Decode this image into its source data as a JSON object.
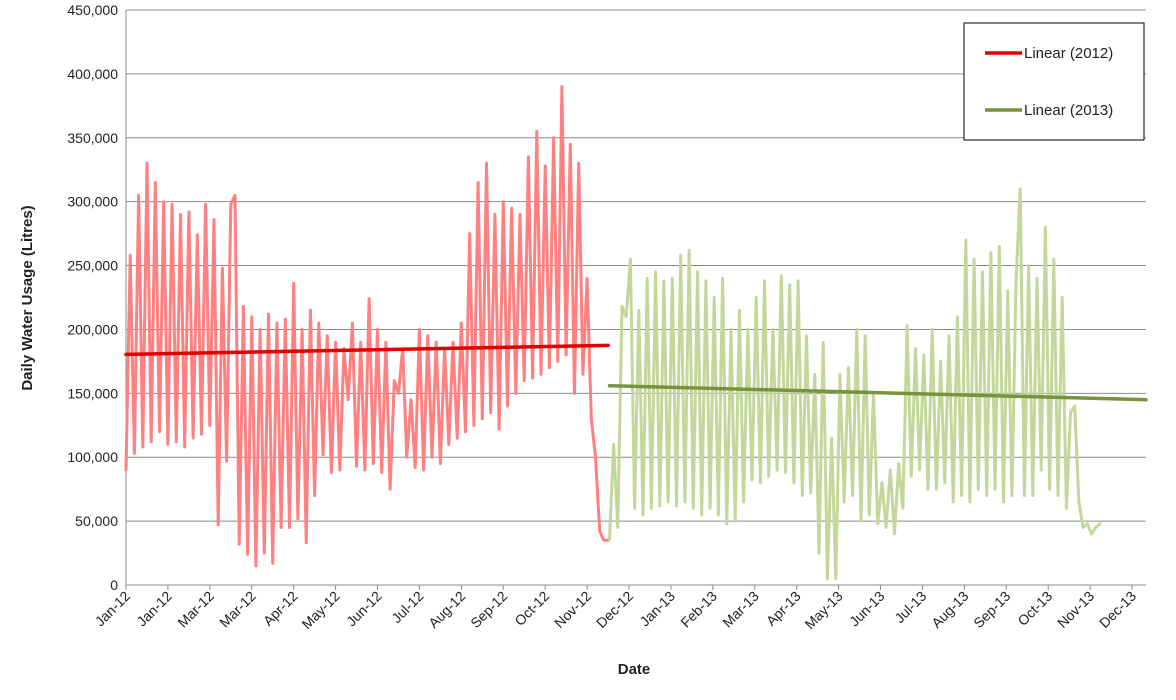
{
  "chart_data": {
    "type": "line",
    "title": "",
    "xlabel": "Date",
    "ylabel": "Daily Water Usage (Litres)",
    "ylim": [
      0,
      450000
    ],
    "yticks": [
      {
        "value": 0,
        "label": "0"
      },
      {
        "value": 50000,
        "label": "50,000"
      },
      {
        "value": 100000,
        "label": "100,000"
      },
      {
        "value": 150000,
        "label": "150,000"
      },
      {
        "value": 200000,
        "label": "200,000"
      },
      {
        "value": 250000,
        "label": "250,000"
      },
      {
        "value": 300000,
        "label": "300,000"
      },
      {
        "value": 350000,
        "label": "350,000"
      },
      {
        "value": 400000,
        "label": "400,000"
      },
      {
        "value": 450000,
        "label": "450,000"
      }
    ],
    "xlim": [
      "2012-01-01",
      "2013-12-31"
    ],
    "xticks": [
      {
        "date": "2012-01-01",
        "label": "Jan-12"
      },
      {
        "date": "2012-01-31",
        "label": "Jan-12"
      },
      {
        "date": "2012-03-01",
        "label": "Mar-12"
      },
      {
        "date": "2012-03-31",
        "label": "Mar-12"
      },
      {
        "date": "2012-04-30",
        "label": "Apr-12"
      },
      {
        "date": "2012-05-30",
        "label": "May-12"
      },
      {
        "date": "2012-06-29",
        "label": "Jun-12"
      },
      {
        "date": "2012-07-29",
        "label": "Jul-12"
      },
      {
        "date": "2012-08-28",
        "label": "Aug-12"
      },
      {
        "date": "2012-09-27",
        "label": "Sep-12"
      },
      {
        "date": "2012-10-27",
        "label": "Oct-12"
      },
      {
        "date": "2012-11-26",
        "label": "Nov-12"
      },
      {
        "date": "2012-12-26",
        "label": "Dec-12"
      },
      {
        "date": "2013-01-25",
        "label": "Jan-13"
      },
      {
        "date": "2013-02-24",
        "label": "Feb-13"
      },
      {
        "date": "2013-03-26",
        "label": "Mar-13"
      },
      {
        "date": "2013-04-25",
        "label": "Apr-13"
      },
      {
        "date": "2013-05-25",
        "label": "May-13"
      },
      {
        "date": "2013-06-24",
        "label": "Jun-13"
      },
      {
        "date": "2013-07-24",
        "label": "Jul-13"
      },
      {
        "date": "2013-08-23",
        "label": "Aug-13"
      },
      {
        "date": "2013-09-22",
        "label": "Sep-13"
      },
      {
        "date": "2013-10-22",
        "label": "Oct-13"
      },
      {
        "date": "2013-11-21",
        "label": "Nov-13"
      },
      {
        "date": "2013-12-21",
        "label": "Dec-13"
      }
    ],
    "grid": {
      "horizontal": true,
      "vertical": false
    },
    "legend_placement": "top-right",
    "series": [
      {
        "name": "",
        "color": "#ff8080",
        "style": "data",
        "points": [
          [
            "2012-01-01",
            90000
          ],
          [
            "2012-01-04",
            258000
          ],
          [
            "2012-01-07",
            103000
          ],
          [
            "2012-01-10",
            305000
          ],
          [
            "2012-01-13",
            108000
          ],
          [
            "2012-01-16",
            330000
          ],
          [
            "2012-01-19",
            112000
          ],
          [
            "2012-01-22",
            315000
          ],
          [
            "2012-01-25",
            120000
          ],
          [
            "2012-01-28",
            300000
          ],
          [
            "2012-01-31",
            110000
          ],
          [
            "2012-02-03",
            298000
          ],
          [
            "2012-02-06",
            112000
          ],
          [
            "2012-02-09",
            290000
          ],
          [
            "2012-02-12",
            108000
          ],
          [
            "2012-02-15",
            292000
          ],
          [
            "2012-02-18",
            115000
          ],
          [
            "2012-02-21",
            274000
          ],
          [
            "2012-02-24",
            118000
          ],
          [
            "2012-02-27",
            298000
          ],
          [
            "2012-03-01",
            125000
          ],
          [
            "2012-03-04",
            286000
          ],
          [
            "2012-03-07",
            47000
          ],
          [
            "2012-03-10",
            248000
          ],
          [
            "2012-03-13",
            97000
          ],
          [
            "2012-03-16",
            298000
          ],
          [
            "2012-03-19",
            305000
          ],
          [
            "2012-03-22",
            32000
          ],
          [
            "2012-03-25",
            218000
          ],
          [
            "2012-03-28",
            24000
          ],
          [
            "2012-03-31",
            210000
          ],
          [
            "2012-04-03",
            15000
          ],
          [
            "2012-04-06",
            200000
          ],
          [
            "2012-04-09",
            25000
          ],
          [
            "2012-04-12",
            212000
          ],
          [
            "2012-04-15",
            17000
          ],
          [
            "2012-04-18",
            205000
          ],
          [
            "2012-04-21",
            45000
          ],
          [
            "2012-04-24",
            208000
          ],
          [
            "2012-04-27",
            45000
          ],
          [
            "2012-04-30",
            236000
          ],
          [
            "2012-05-03",
            52000
          ],
          [
            "2012-05-06",
            200000
          ],
          [
            "2012-05-09",
            33000
          ],
          [
            "2012-05-12",
            215000
          ],
          [
            "2012-05-15",
            70000
          ],
          [
            "2012-05-18",
            205000
          ],
          [
            "2012-05-21",
            102000
          ],
          [
            "2012-05-24",
            195000
          ],
          [
            "2012-05-27",
            88000
          ],
          [
            "2012-05-30",
            190000
          ],
          [
            "2012-06-02",
            90000
          ],
          [
            "2012-06-05",
            185000
          ],
          [
            "2012-06-08",
            145000
          ],
          [
            "2012-06-11",
            205000
          ],
          [
            "2012-06-14",
            93000
          ],
          [
            "2012-06-17",
            190000
          ],
          [
            "2012-06-20",
            90000
          ],
          [
            "2012-06-23",
            224000
          ],
          [
            "2012-06-26",
            95000
          ],
          [
            "2012-06-29",
            200000
          ],
          [
            "2012-07-02",
            88000
          ],
          [
            "2012-07-05",
            190000
          ],
          [
            "2012-07-08",
            75000
          ],
          [
            "2012-07-11",
            160000
          ],
          [
            "2012-07-14",
            150000
          ],
          [
            "2012-07-17",
            185000
          ],
          [
            "2012-07-20",
            100000
          ],
          [
            "2012-07-23",
            145000
          ],
          [
            "2012-07-26",
            92000
          ],
          [
            "2012-07-29",
            200000
          ],
          [
            "2012-08-01",
            90000
          ],
          [
            "2012-08-04",
            195000
          ],
          [
            "2012-08-07",
            100000
          ],
          [
            "2012-08-10",
            190000
          ],
          [
            "2012-08-13",
            95000
          ],
          [
            "2012-08-16",
            185000
          ],
          [
            "2012-08-19",
            110000
          ],
          [
            "2012-08-22",
            190000
          ],
          [
            "2012-08-25",
            115000
          ],
          [
            "2012-08-28",
            205000
          ],
          [
            "2012-08-31",
            120000
          ],
          [
            "2012-09-03",
            275000
          ],
          [
            "2012-09-06",
            125000
          ],
          [
            "2012-09-09",
            315000
          ],
          [
            "2012-09-12",
            130000
          ],
          [
            "2012-09-15",
            330000
          ],
          [
            "2012-09-18",
            135000
          ],
          [
            "2012-09-21",
            290000
          ],
          [
            "2012-09-24",
            122000
          ],
          [
            "2012-09-27",
            300000
          ],
          [
            "2012-09-30",
            140000
          ],
          [
            "2012-10-03",
            295000
          ],
          [
            "2012-10-06",
            150000
          ],
          [
            "2012-10-09",
            290000
          ],
          [
            "2012-10-12",
            160000
          ],
          [
            "2012-10-15",
            335000
          ],
          [
            "2012-10-18",
            162000
          ],
          [
            "2012-10-21",
            355000
          ],
          [
            "2012-10-24",
            165000
          ],
          [
            "2012-10-27",
            328000
          ],
          [
            "2012-10-30",
            170000
          ],
          [
            "2012-11-02",
            350000
          ],
          [
            "2012-11-05",
            175000
          ],
          [
            "2012-11-08",
            390000
          ],
          [
            "2012-11-11",
            180000
          ],
          [
            "2012-11-14",
            345000
          ],
          [
            "2012-11-17",
            150000
          ],
          [
            "2012-11-20",
            330000
          ],
          [
            "2012-11-23",
            165000
          ],
          [
            "2012-11-26",
            240000
          ],
          [
            "2012-11-29",
            130000
          ],
          [
            "2012-12-02",
            100000
          ],
          [
            "2012-12-05",
            42000
          ],
          [
            "2012-12-08",
            35000
          ],
          [
            "2012-12-11",
            35000
          ]
        ]
      },
      {
        "name": "",
        "color": "#c4d79b",
        "style": "data",
        "points": [
          [
            "2012-12-12",
            36000
          ],
          [
            "2012-12-15",
            110000
          ],
          [
            "2012-12-18",
            45000
          ],
          [
            "2012-12-21",
            218000
          ],
          [
            "2012-12-24",
            210000
          ],
          [
            "2012-12-27",
            255000
          ],
          [
            "2012-12-30",
            60000
          ],
          [
            "2013-01-02",
            215000
          ],
          [
            "2013-01-05",
            55000
          ],
          [
            "2013-01-08",
            240000
          ],
          [
            "2013-01-11",
            60000
          ],
          [
            "2013-01-14",
            245000
          ],
          [
            "2013-01-17",
            62000
          ],
          [
            "2013-01-20",
            238000
          ],
          [
            "2013-01-23",
            65000
          ],
          [
            "2013-01-26",
            240000
          ],
          [
            "2013-01-29",
            62000
          ],
          [
            "2013-02-01",
            258000
          ],
          [
            "2013-02-04",
            65000
          ],
          [
            "2013-02-07",
            262000
          ],
          [
            "2013-02-10",
            60000
          ],
          [
            "2013-02-13",
            245000
          ],
          [
            "2013-02-16",
            55000
          ],
          [
            "2013-02-19",
            238000
          ],
          [
            "2013-02-22",
            60000
          ],
          [
            "2013-02-25",
            225000
          ],
          [
            "2013-02-28",
            55000
          ],
          [
            "2013-03-03",
            240000
          ],
          [
            "2013-03-06",
            48000
          ],
          [
            "2013-03-09",
            200000
          ],
          [
            "2013-03-12",
            50000
          ],
          [
            "2013-03-15",
            215000
          ],
          [
            "2013-03-18",
            65000
          ],
          [
            "2013-03-21",
            200000
          ],
          [
            "2013-03-24",
            82000
          ],
          [
            "2013-03-27",
            225000
          ],
          [
            "2013-03-30",
            80000
          ],
          [
            "2013-04-02",
            238000
          ],
          [
            "2013-04-05",
            85000
          ],
          [
            "2013-04-08",
            200000
          ],
          [
            "2013-04-11",
            90000
          ],
          [
            "2013-04-14",
            242000
          ],
          [
            "2013-04-17",
            88000
          ],
          [
            "2013-04-20",
            235000
          ],
          [
            "2013-04-23",
            80000
          ],
          [
            "2013-04-26",
            238000
          ],
          [
            "2013-04-29",
            70000
          ],
          [
            "2013-05-02",
            195000
          ],
          [
            "2013-05-05",
            72000
          ],
          [
            "2013-05-08",
            165000
          ],
          [
            "2013-05-11",
            25000
          ],
          [
            "2013-05-14",
            190000
          ],
          [
            "2013-05-17",
            5000
          ],
          [
            "2013-05-20",
            115000
          ],
          [
            "2013-05-23",
            5000
          ],
          [
            "2013-05-26",
            165000
          ],
          [
            "2013-05-29",
            65000
          ],
          [
            "2013-06-01",
            170000
          ],
          [
            "2013-06-04",
            70000
          ],
          [
            "2013-06-07",
            200000
          ],
          [
            "2013-06-10",
            50000
          ],
          [
            "2013-06-13",
            195000
          ],
          [
            "2013-06-16",
            55000
          ],
          [
            "2013-06-19",
            150000
          ],
          [
            "2013-06-22",
            48000
          ],
          [
            "2013-06-25",
            80000
          ],
          [
            "2013-06-28",
            45000
          ],
          [
            "2013-07-01",
            90000
          ],
          [
            "2013-07-04",
            40000
          ],
          [
            "2013-07-07",
            95000
          ],
          [
            "2013-07-10",
            60000
          ],
          [
            "2013-07-13",
            203000
          ],
          [
            "2013-07-16",
            85000
          ],
          [
            "2013-07-19",
            185000
          ],
          [
            "2013-07-22",
            90000
          ],
          [
            "2013-07-25",
            180000
          ],
          [
            "2013-07-28",
            75000
          ],
          [
            "2013-07-31",
            200000
          ],
          [
            "2013-08-03",
            75000
          ],
          [
            "2013-08-06",
            175000
          ],
          [
            "2013-08-09",
            80000
          ],
          [
            "2013-08-12",
            195000
          ],
          [
            "2013-08-15",
            65000
          ],
          [
            "2013-08-18",
            210000
          ],
          [
            "2013-08-21",
            70000
          ],
          [
            "2013-08-24",
            270000
          ],
          [
            "2013-08-27",
            65000
          ],
          [
            "2013-08-30",
            255000
          ],
          [
            "2013-09-02",
            75000
          ],
          [
            "2013-09-05",
            245000
          ],
          [
            "2013-09-08",
            70000
          ],
          [
            "2013-09-11",
            260000
          ],
          [
            "2013-09-14",
            75000
          ],
          [
            "2013-09-17",
            265000
          ],
          [
            "2013-09-20",
            65000
          ],
          [
            "2013-09-23",
            230000
          ],
          [
            "2013-09-26",
            70000
          ],
          [
            "2013-09-29",
            240000
          ],
          [
            "2013-10-02",
            310000
          ],
          [
            "2013-10-05",
            70000
          ],
          [
            "2013-10-08",
            250000
          ],
          [
            "2013-10-11",
            70000
          ],
          [
            "2013-10-14",
            240000
          ],
          [
            "2013-10-17",
            90000
          ],
          [
            "2013-10-20",
            280000
          ],
          [
            "2013-10-23",
            75000
          ],
          [
            "2013-10-26",
            255000
          ],
          [
            "2013-10-29",
            70000
          ],
          [
            "2013-11-01",
            225000
          ],
          [
            "2013-11-04",
            60000
          ],
          [
            "2013-11-07",
            135000
          ],
          [
            "2013-11-10",
            140000
          ],
          [
            "2013-11-13",
            65000
          ],
          [
            "2013-11-16",
            45000
          ],
          [
            "2013-11-19",
            48000
          ],
          [
            "2013-11-22",
            40000
          ],
          [
            "2013-11-25",
            45000
          ],
          [
            "2013-11-28",
            48000
          ]
        ]
      },
      {
        "name": "Linear (2012)",
        "color": "#e00000",
        "style": "trend",
        "points": [
          [
            "2012-01-01",
            180500
          ],
          [
            "2012-12-11",
            187500
          ]
        ]
      },
      {
        "name": "Linear (2013)",
        "color": "#77933c",
        "style": "trend",
        "points": [
          [
            "2012-12-12",
            156000
          ],
          [
            "2013-12-31",
            145000
          ]
        ]
      }
    ]
  }
}
